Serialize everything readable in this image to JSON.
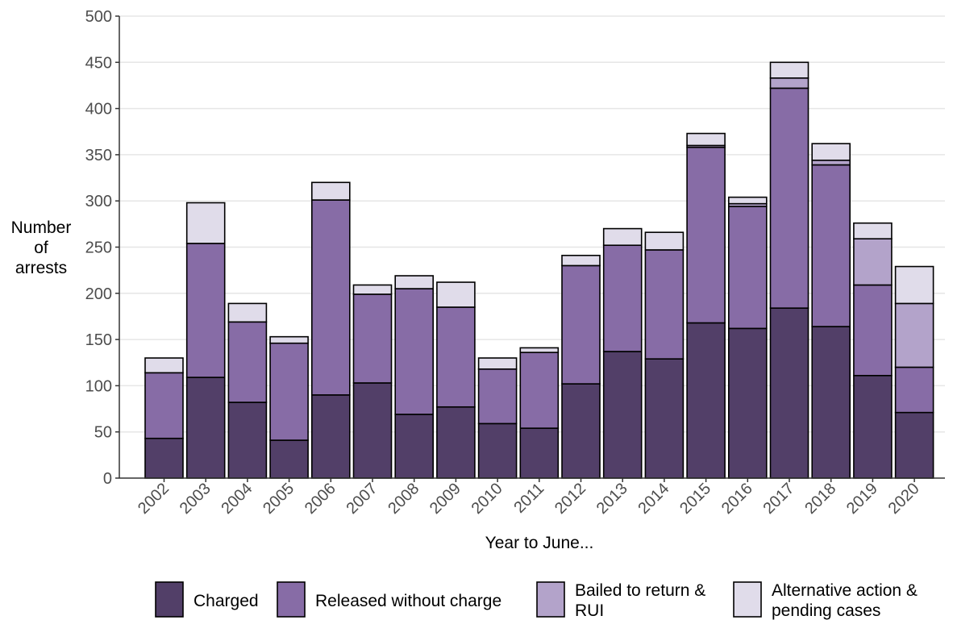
{
  "chart_data": {
    "type": "bar",
    "stacked": true,
    "xlabel": "Year to June...",
    "ylabel": "Number of arrests",
    "ylim": [
      0,
      500
    ],
    "yticks": [
      0,
      50,
      100,
      150,
      200,
      250,
      300,
      350,
      400,
      450,
      500
    ],
    "grid": "horizontal",
    "legend_position": "bottom",
    "categories": [
      "2002",
      "2003",
      "2004",
      "2005",
      "2006",
      "2007",
      "2008",
      "2009",
      "2010",
      "2011",
      "2012",
      "2013",
      "2014",
      "2015",
      "2016",
      "2017",
      "2018",
      "2019",
      "2020"
    ],
    "series": [
      {
        "name": "Charged",
        "color": "#523f68",
        "values": [
          43,
          109,
          82,
          41,
          90,
          103,
          69,
          77,
          59,
          54,
          102,
          137,
          129,
          168,
          162,
          184,
          164,
          111,
          71
        ]
      },
      {
        "name": "Released without charge",
        "color": "#876ca6",
        "values": [
          71,
          145,
          87,
          105,
          211,
          96,
          136,
          108,
          59,
          82,
          128,
          115,
          118,
          190,
          132,
          238,
          175,
          98,
          49
        ]
      },
      {
        "name": "Bailed to return & RUI",
        "color": "#b3a3ca",
        "values": [
          0,
          0,
          0,
          0,
          0,
          0,
          0,
          0,
          0,
          0,
          0,
          0,
          0,
          2,
          3,
          11,
          5,
          50,
          69
        ]
      },
      {
        "name": "Alternative action & pending cases",
        "color": "#e0dcea",
        "values": [
          16,
          44,
          20,
          7,
          19,
          10,
          14,
          27,
          12,
          5,
          11,
          18,
          19,
          13,
          7,
          17,
          18,
          17,
          40
        ]
      }
    ]
  }
}
